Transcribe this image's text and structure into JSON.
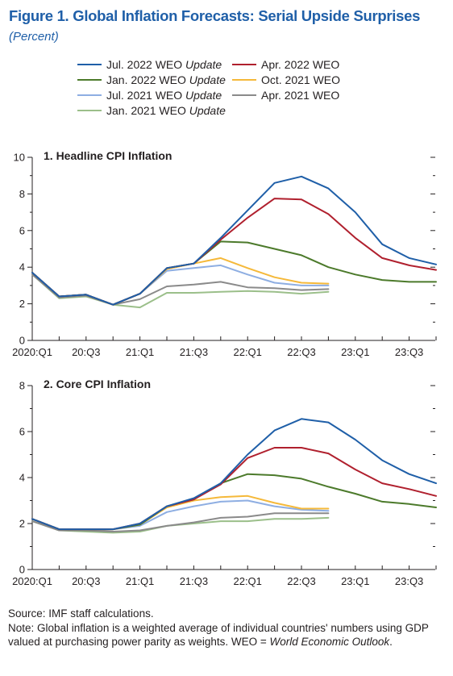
{
  "figure": {
    "title": "Figure 1.  Global Inflation Forecasts: Serial Upside Surprises",
    "subtitle": "(Percent)"
  },
  "legend": [
    {
      "main": "Jul. 2022 WEO ",
      "italic": "Update",
      "color": "#1f5fa8"
    },
    {
      "main": "Apr. 2022 WEO",
      "italic": "",
      "color": "#b0202e"
    },
    {
      "main": "Jan. 2022 WEO ",
      "italic": "Update",
      "color": "#4c7a2b"
    },
    {
      "main": "Oct. 2021 WEO",
      "italic": "",
      "color": "#f5b93a"
    },
    {
      "main": "Jul. 2021 WEO ",
      "italic": "Update",
      "color": "#8eaee2"
    },
    {
      "main": "Apr. 2021 WEO",
      "italic": "",
      "color": "#8a8a8a"
    },
    {
      "main": "Jan. 2021 WEO ",
      "italic": "Update",
      "color": "#9bbf8a"
    }
  ],
  "chart_data": [
    {
      "type": "line",
      "title": "1. Headline CPI Inflation",
      "ylim": [
        0,
        10
      ],
      "yticks": [
        "0",
        "2",
        "4",
        "6",
        "8",
        "10"
      ],
      "xtick_labels": [
        "2020:Q1",
        "20:Q3",
        "21:Q1",
        "21:Q3",
        "22:Q1",
        "22:Q3",
        "23:Q1",
        "23:Q3"
      ],
      "x": [
        "2020:Q1",
        "2020:Q2",
        "2020:Q3",
        "2020:Q4",
        "2021:Q1",
        "2021:Q2",
        "2021:Q3",
        "2021:Q4",
        "2022:Q1",
        "2022:Q2",
        "2022:Q3",
        "2022:Q4",
        "2023:Q1",
        "2023:Q2",
        "2023:Q3",
        "2023:Q4"
      ],
      "series": [
        {
          "name": "Jul. 2022 WEO Update",
          "color": "#1f5fa8",
          "values": [
            3.7,
            2.4,
            2.5,
            1.95,
            2.55,
            3.95,
            4.2,
            5.6,
            7.1,
            8.6,
            8.95,
            8.3,
            7.0,
            5.25,
            4.5,
            4.15
          ]
        },
        {
          "name": "Apr. 2022 WEO",
          "color": "#b0202e",
          "values": [
            3.7,
            2.4,
            2.5,
            1.95,
            2.55,
            3.95,
            4.2,
            5.5,
            6.7,
            7.75,
            7.7,
            6.9,
            5.6,
            4.5,
            4.1,
            3.85
          ]
        },
        {
          "name": "Jan. 2022 WEO Update",
          "color": "#4c7a2b",
          "values": [
            3.7,
            2.4,
            2.5,
            1.95,
            2.55,
            3.95,
            4.2,
            5.4,
            5.35,
            5.0,
            4.65,
            4.0,
            3.6,
            3.3,
            3.2,
            3.2
          ]
        },
        {
          "name": "Oct. 2021 WEO",
          "color": "#f5b93a",
          "values": [
            3.7,
            2.4,
            2.5,
            1.95,
            2.55,
            3.9,
            4.2,
            4.5,
            3.95,
            3.45,
            3.15,
            3.1,
            null,
            null,
            null,
            null
          ]
        },
        {
          "name": "Jul. 2021 WEO Update",
          "color": "#8eaee2",
          "values": [
            3.7,
            2.4,
            2.5,
            1.95,
            2.55,
            3.8,
            3.95,
            4.1,
            3.6,
            3.15,
            3.0,
            3.0,
            null,
            null,
            null,
            null
          ]
        },
        {
          "name": "Apr. 2021 WEO",
          "color": "#8a8a8a",
          "values": [
            3.6,
            2.35,
            2.45,
            1.95,
            2.25,
            2.95,
            3.05,
            3.2,
            2.9,
            2.85,
            2.75,
            2.8,
            null,
            null,
            null,
            null
          ]
        },
        {
          "name": "Jan. 2021 WEO Update",
          "color": "#9bbf8a",
          "values": [
            3.6,
            2.3,
            2.4,
            1.95,
            1.8,
            2.6,
            2.6,
            2.65,
            2.7,
            2.65,
            2.55,
            2.65,
            null,
            null,
            null,
            null
          ]
        }
      ]
    },
    {
      "type": "line",
      "title": "2. Core CPI Inflation",
      "ylim": [
        0,
        8
      ],
      "yticks": [
        "0",
        "2",
        "4",
        "6",
        "8"
      ],
      "xtick_labels": [
        "2020:Q1",
        "20:Q3",
        "21:Q1",
        "21:Q3",
        "22:Q1",
        "22:Q3",
        "23:Q1",
        "23:Q3"
      ],
      "x": [
        "2020:Q1",
        "2020:Q2",
        "2020:Q3",
        "2020:Q4",
        "2021:Q1",
        "2021:Q2",
        "2021:Q3",
        "2021:Q4",
        "2022:Q1",
        "2022:Q2",
        "2022:Q3",
        "2022:Q4",
        "2023:Q1",
        "2023:Q2",
        "2023:Q3",
        "2023:Q4"
      ],
      "series": [
        {
          "name": "Jul. 2022 WEO Update",
          "color": "#1f5fa8",
          "values": [
            2.2,
            1.75,
            1.75,
            1.75,
            2.0,
            2.75,
            3.1,
            3.75,
            5.0,
            6.05,
            6.55,
            6.4,
            5.65,
            4.75,
            4.15,
            3.75
          ]
        },
        {
          "name": "Apr. 2022 WEO",
          "color": "#b0202e",
          "values": [
            2.2,
            1.75,
            1.75,
            1.75,
            2.0,
            2.75,
            3.05,
            3.7,
            4.85,
            5.3,
            5.3,
            5.05,
            4.35,
            3.75,
            3.5,
            3.2
          ]
        },
        {
          "name": "Jan. 2022 WEO Update",
          "color": "#4c7a2b",
          "values": [
            2.2,
            1.75,
            1.75,
            1.75,
            1.95,
            2.75,
            3.05,
            3.75,
            4.15,
            4.1,
            3.95,
            3.6,
            3.3,
            2.95,
            2.85,
            2.7
          ]
        },
        {
          "name": "Oct. 2021 WEO",
          "color": "#f5b93a",
          "values": [
            2.2,
            1.75,
            1.75,
            1.75,
            1.95,
            2.7,
            3.0,
            3.15,
            3.2,
            2.9,
            2.65,
            2.65,
            null,
            null,
            null,
            null
          ]
        },
        {
          "name": "Jul. 2021 WEO Update",
          "color": "#8eaee2",
          "values": [
            2.2,
            1.75,
            1.75,
            1.75,
            1.9,
            2.5,
            2.75,
            2.95,
            3.0,
            2.75,
            2.6,
            2.55,
            null,
            null,
            null,
            null
          ]
        },
        {
          "name": "Apr. 2021 WEO",
          "color": "#8a8a8a",
          "values": [
            2.1,
            1.7,
            1.7,
            1.65,
            1.7,
            1.9,
            2.05,
            2.25,
            2.3,
            2.45,
            2.45,
            2.45,
            null,
            null,
            null,
            null
          ]
        },
        {
          "name": "Jan. 2021 WEO Update",
          "color": "#9bbf8a",
          "values": [
            2.1,
            1.7,
            1.65,
            1.6,
            1.65,
            1.9,
            2.0,
            2.1,
            2.1,
            2.2,
            2.2,
            2.25,
            null,
            null,
            null,
            null
          ]
        }
      ]
    }
  ],
  "footnotes": {
    "source": "Source: IMF staff calculations.",
    "note_main": "Note: Global inflation is a weighted average of individual countries' numbers using GDP valued at purchasing power parity as weights. WEO = ",
    "note_italic": "World Economic Outlook",
    "note_end": "."
  }
}
